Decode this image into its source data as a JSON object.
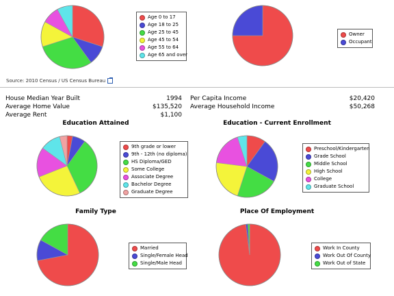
{
  "source": {
    "text": "Source: 2010 Census / US Census Bureau",
    "icon": "external-link-icon"
  },
  "stats_left": [
    {
      "label": "House Median Year Built",
      "value": "1994"
    },
    {
      "label": "Average Home Value",
      "value": "$135,520"
    },
    {
      "label": "Average Rent",
      "value": "$1,100"
    }
  ],
  "stats_right": [
    {
      "label": "Per Capita Income",
      "value": "$20,420"
    },
    {
      "label": "Average Household Income",
      "value": "$50,268"
    }
  ],
  "titles": {
    "education_attained": "Education Attained",
    "current_enrollment": "Education - Current Enrollment",
    "family_type": "Family Type",
    "place_of_employment": "Place Of Employment"
  },
  "chart_data": [
    {
      "id": "age",
      "type": "pie",
      "categories": [
        "Age 0 to 17",
        "Age 18 to 25",
        "Age 25 to 45",
        "Age 45 to 54",
        "Age 55 to 64",
        "Age 65 and over"
      ],
      "values": [
        30,
        10,
        30,
        13,
        9,
        8
      ],
      "colors": [
        "#ef4b4b",
        "#4a4ad6",
        "#44dd44",
        "#f4f43a",
        "#e851e0",
        "#5fe5ea"
      ]
    },
    {
      "id": "tenure",
      "type": "pie",
      "categories": [
        "Owner",
        "Occupant"
      ],
      "values": [
        75,
        25
      ],
      "colors": [
        "#ef4b4b",
        "#4a4ad6"
      ]
    },
    {
      "id": "education_attained",
      "type": "pie",
      "categories": [
        "9th grade or lower",
        "9th - 12th (no diploma)",
        "HS Diploma/GED",
        "Some College",
        "Associate Degree",
        "Bachelor Degree",
        "Graduate Degree"
      ],
      "values": [
        3,
        7,
        33,
        26,
        16,
        11,
        4
      ],
      "colors": [
        "#ef4b4b",
        "#4a4ad6",
        "#44dd44",
        "#f4f43a",
        "#e851e0",
        "#5fe5ea",
        "#f1a2a2"
      ]
    },
    {
      "id": "current_enrollment",
      "type": "pie",
      "categories": [
        "Preschool/Kindergarten",
        "Grade School",
        "Middle School",
        "High School",
        "College",
        "Graduate School"
      ],
      "values": [
        10,
        23,
        22,
        22,
        18,
        5
      ],
      "colors": [
        "#ef4b4b",
        "#4a4ad6",
        "#44dd44",
        "#f4f43a",
        "#e851e0",
        "#5fe5ea"
      ]
    },
    {
      "id": "family_type",
      "type": "pie",
      "categories": [
        "Married",
        "Single/Female Head",
        "Single/Male Head"
      ],
      "values": [
        72,
        11,
        17
      ],
      "colors": [
        "#ef4b4b",
        "#4a4ad6",
        "#44dd44"
      ]
    },
    {
      "id": "place_of_employment",
      "type": "pie",
      "categories": [
        "Work In County",
        "Work Out Of County",
        "Work Out of State"
      ],
      "values": [
        98,
        1,
        1
      ],
      "colors": [
        "#ef4b4b",
        "#4a4ad6",
        "#44dd44"
      ]
    }
  ]
}
